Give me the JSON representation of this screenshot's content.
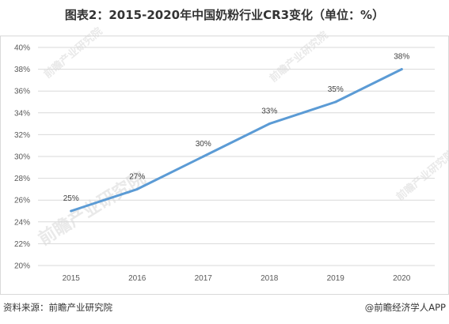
{
  "title": "图表2：2015-2020年中国奶粉行业CR3变化（单位：%）",
  "source": "资料来源：前瞻产业研究院",
  "brand": "@前瞻经济学人APP",
  "watermark": {
    "text": "前瞻产业研究院"
  },
  "colors": {
    "line": "#5b9bd5",
    "grid": "#d9d9d9",
    "axis_text": "#595959"
  },
  "chart_data": {
    "type": "line",
    "title": "图表2：2015-2020年中国奶粉行业CR3变化（单位：%）",
    "x": [
      "2015",
      "2016",
      "2017",
      "2018",
      "2019",
      "2020"
    ],
    "series": [
      {
        "values": [
          25,
          27,
          30,
          33,
          35,
          38
        ]
      }
    ],
    "data_labels": [
      "25%",
      "27%",
      "30%",
      "33%",
      "35%",
      "38%"
    ],
    "y_ticks": [
      "20%",
      "22%",
      "24%",
      "26%",
      "28%",
      "30%",
      "32%",
      "34%",
      "36%",
      "38%",
      "40%"
    ],
    "ylim": [
      20,
      40
    ],
    "y_step": 2,
    "grid": "horizontal",
    "legend": "none",
    "xlabel": "",
    "ylabel": ""
  }
}
